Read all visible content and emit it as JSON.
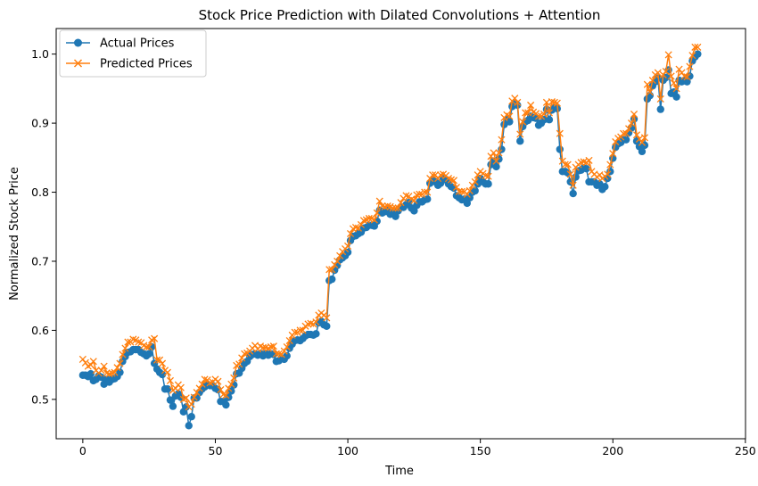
{
  "chart_data": {
    "type": "line",
    "title": "Stock Price Prediction with Dilated Convolutions + Attention",
    "xlabel": "Time",
    "ylabel": "Normalized Stock Price",
    "xlim": [
      -10.05,
      250.05
    ],
    "ylim": [
      0.443,
      1.037
    ],
    "xticks": [
      0,
      50,
      100,
      150,
      200,
      250
    ],
    "xtick_labels": [
      "0",
      "50",
      "100",
      "150",
      "200",
      "250"
    ],
    "yticks": [
      0.5,
      0.6,
      0.7,
      0.8,
      0.9,
      1.0
    ],
    "ytick_labels": [
      "0.5",
      "0.6",
      "0.7",
      "0.8",
      "0.9",
      "1.0"
    ],
    "grid": false,
    "legend_position": "upper-left",
    "series": [
      {
        "name": "Actual Prices",
        "color": "#1f77b4",
        "marker": "circle",
        "values": [
          0.535,
          0.535,
          0.533,
          0.537,
          0.527,
          0.529,
          0.534,
          0.532,
          0.522,
          0.529,
          0.525,
          0.529,
          0.53,
          0.533,
          0.539,
          0.555,
          0.562,
          0.568,
          0.569,
          0.572,
          0.572,
          0.572,
          0.568,
          0.566,
          0.563,
          0.566,
          0.576,
          0.552,
          0.544,
          0.539,
          0.536,
          0.515,
          0.515,
          0.499,
          0.49,
          0.505,
          0.508,
          0.503,
          0.482,
          0.489,
          0.462,
          0.475,
          0.502,
          0.502,
          0.51,
          0.515,
          0.518,
          0.522,
          0.52,
          0.52,
          0.516,
          0.514,
          0.497,
          0.497,
          0.492,
          0.503,
          0.512,
          0.521,
          0.537,
          0.538,
          0.545,
          0.552,
          0.555,
          0.562,
          0.565,
          0.566,
          0.564,
          0.566,
          0.563,
          0.566,
          0.564,
          0.566,
          0.565,
          0.555,
          0.556,
          0.56,
          0.558,
          0.563,
          0.574,
          0.58,
          0.585,
          0.586,
          0.585,
          0.588,
          0.592,
          0.594,
          0.594,
          0.593,
          0.595,
          0.611,
          0.613,
          0.608,
          0.606,
          0.672,
          0.674,
          0.687,
          0.694,
          0.702,
          0.705,
          0.708,
          0.713,
          0.73,
          0.736,
          0.737,
          0.74,
          0.742,
          0.748,
          0.749,
          0.752,
          0.752,
          0.751,
          0.758,
          0.774,
          0.77,
          0.772,
          0.774,
          0.768,
          0.77,
          0.765,
          0.773,
          0.778,
          0.778,
          0.782,
          0.785,
          0.777,
          0.773,
          0.781,
          0.786,
          0.786,
          0.789,
          0.79,
          0.813,
          0.818,
          0.815,
          0.81,
          0.813,
          0.82,
          0.818,
          0.812,
          0.808,
          0.806,
          0.795,
          0.792,
          0.789,
          0.79,
          0.784,
          0.792,
          0.8,
          0.802,
          0.812,
          0.82,
          0.815,
          0.812,
          0.812,
          0.84,
          0.845,
          0.837,
          0.848,
          0.862,
          0.898,
          0.905,
          0.902,
          0.924,
          0.928,
          0.926,
          0.874,
          0.895,
          0.902,
          0.904,
          0.91,
          0.908,
          0.907,
          0.897,
          0.9,
          0.905,
          0.92,
          0.905,
          0.919,
          0.922,
          0.921,
          0.862,
          0.83,
          0.83,
          0.828,
          0.815,
          0.798,
          0.822,
          0.831,
          0.832,
          0.835,
          0.834,
          0.815,
          0.815,
          0.815,
          0.81,
          0.812,
          0.804,
          0.808,
          0.82,
          0.83,
          0.849,
          0.865,
          0.87,
          0.872,
          0.876,
          0.876,
          0.886,
          0.893,
          0.906,
          0.874,
          0.866,
          0.859,
          0.868,
          0.935,
          0.94,
          0.954,
          0.96,
          0.965,
          0.92,
          0.962,
          0.966,
          0.977,
          0.943,
          0.945,
          0.938,
          0.962,
          0.96,
          0.962,
          0.96,
          0.968,
          0.99,
          0.996,
          1.0
        ]
      },
      {
        "name": "Predicted Prices",
        "color": "#ff7f0e",
        "marker": "x",
        "values": [
          0.558,
          0.553,
          0.548,
          0.55,
          0.555,
          0.542,
          0.538,
          0.542,
          0.548,
          0.538,
          0.537,
          0.538,
          0.539,
          0.546,
          0.552,
          0.565,
          0.574,
          0.583,
          0.583,
          0.587,
          0.586,
          0.583,
          0.582,
          0.578,
          0.576,
          0.576,
          0.586,
          0.588,
          0.557,
          0.557,
          0.552,
          0.542,
          0.539,
          0.527,
          0.513,
          0.516,
          0.521,
          0.517,
          0.5,
          0.502,
          0.489,
          0.493,
          0.503,
          0.51,
          0.516,
          0.522,
          0.529,
          0.528,
          0.524,
          0.525,
          0.529,
          0.526,
          0.514,
          0.507,
          0.506,
          0.516,
          0.522,
          0.531,
          0.549,
          0.551,
          0.56,
          0.566,
          0.567,
          0.57,
          0.574,
          0.578,
          0.573,
          0.577,
          0.575,
          0.575,
          0.574,
          0.576,
          0.577,
          0.566,
          0.566,
          0.565,
          0.57,
          0.576,
          0.585,
          0.593,
          0.597,
          0.597,
          0.6,
          0.6,
          0.606,
          0.609,
          0.61,
          0.609,
          0.612,
          0.622,
          0.625,
          0.622,
          0.618,
          0.688,
          0.688,
          0.695,
          0.7,
          0.708,
          0.714,
          0.718,
          0.722,
          0.74,
          0.747,
          0.749,
          0.748,
          0.753,
          0.759,
          0.76,
          0.762,
          0.762,
          0.76,
          0.77,
          0.787,
          0.78,
          0.779,
          0.78,
          0.779,
          0.777,
          0.777,
          0.777,
          0.785,
          0.791,
          0.795,
          0.794,
          0.79,
          0.788,
          0.796,
          0.797,
          0.797,
          0.8,
          0.8,
          0.82,
          0.825,
          0.825,
          0.82,
          0.825,
          0.826,
          0.824,
          0.82,
          0.818,
          0.817,
          0.807,
          0.801,
          0.801,
          0.801,
          0.797,
          0.802,
          0.81,
          0.815,
          0.825,
          0.83,
          0.827,
          0.824,
          0.823,
          0.852,
          0.857,
          0.845,
          0.857,
          0.876,
          0.908,
          0.912,
          0.91,
          0.932,
          0.936,
          0.93,
          0.884,
          0.902,
          0.915,
          0.915,
          0.926,
          0.916,
          0.914,
          0.91,
          0.91,
          0.913,
          0.93,
          0.915,
          0.931,
          0.93,
          0.929,
          0.885,
          0.845,
          0.84,
          0.84,
          0.826,
          0.81,
          0.836,
          0.84,
          0.843,
          0.844,
          0.843,
          0.846,
          0.83,
          0.826,
          0.822,
          0.825,
          0.82,
          0.823,
          0.826,
          0.84,
          0.856,
          0.873,
          0.878,
          0.88,
          0.885,
          0.885,
          0.892,
          0.9,
          0.913,
          0.883,
          0.877,
          0.872,
          0.879,
          0.956,
          0.945,
          0.962,
          0.97,
          0.973,
          0.935,
          0.97,
          0.975,
          0.999,
          0.968,
          0.958,
          0.95,
          0.978,
          0.973,
          0.968,
          0.967,
          0.982,
          0.998,
          1.01,
          1.01
        ]
      }
    ]
  }
}
